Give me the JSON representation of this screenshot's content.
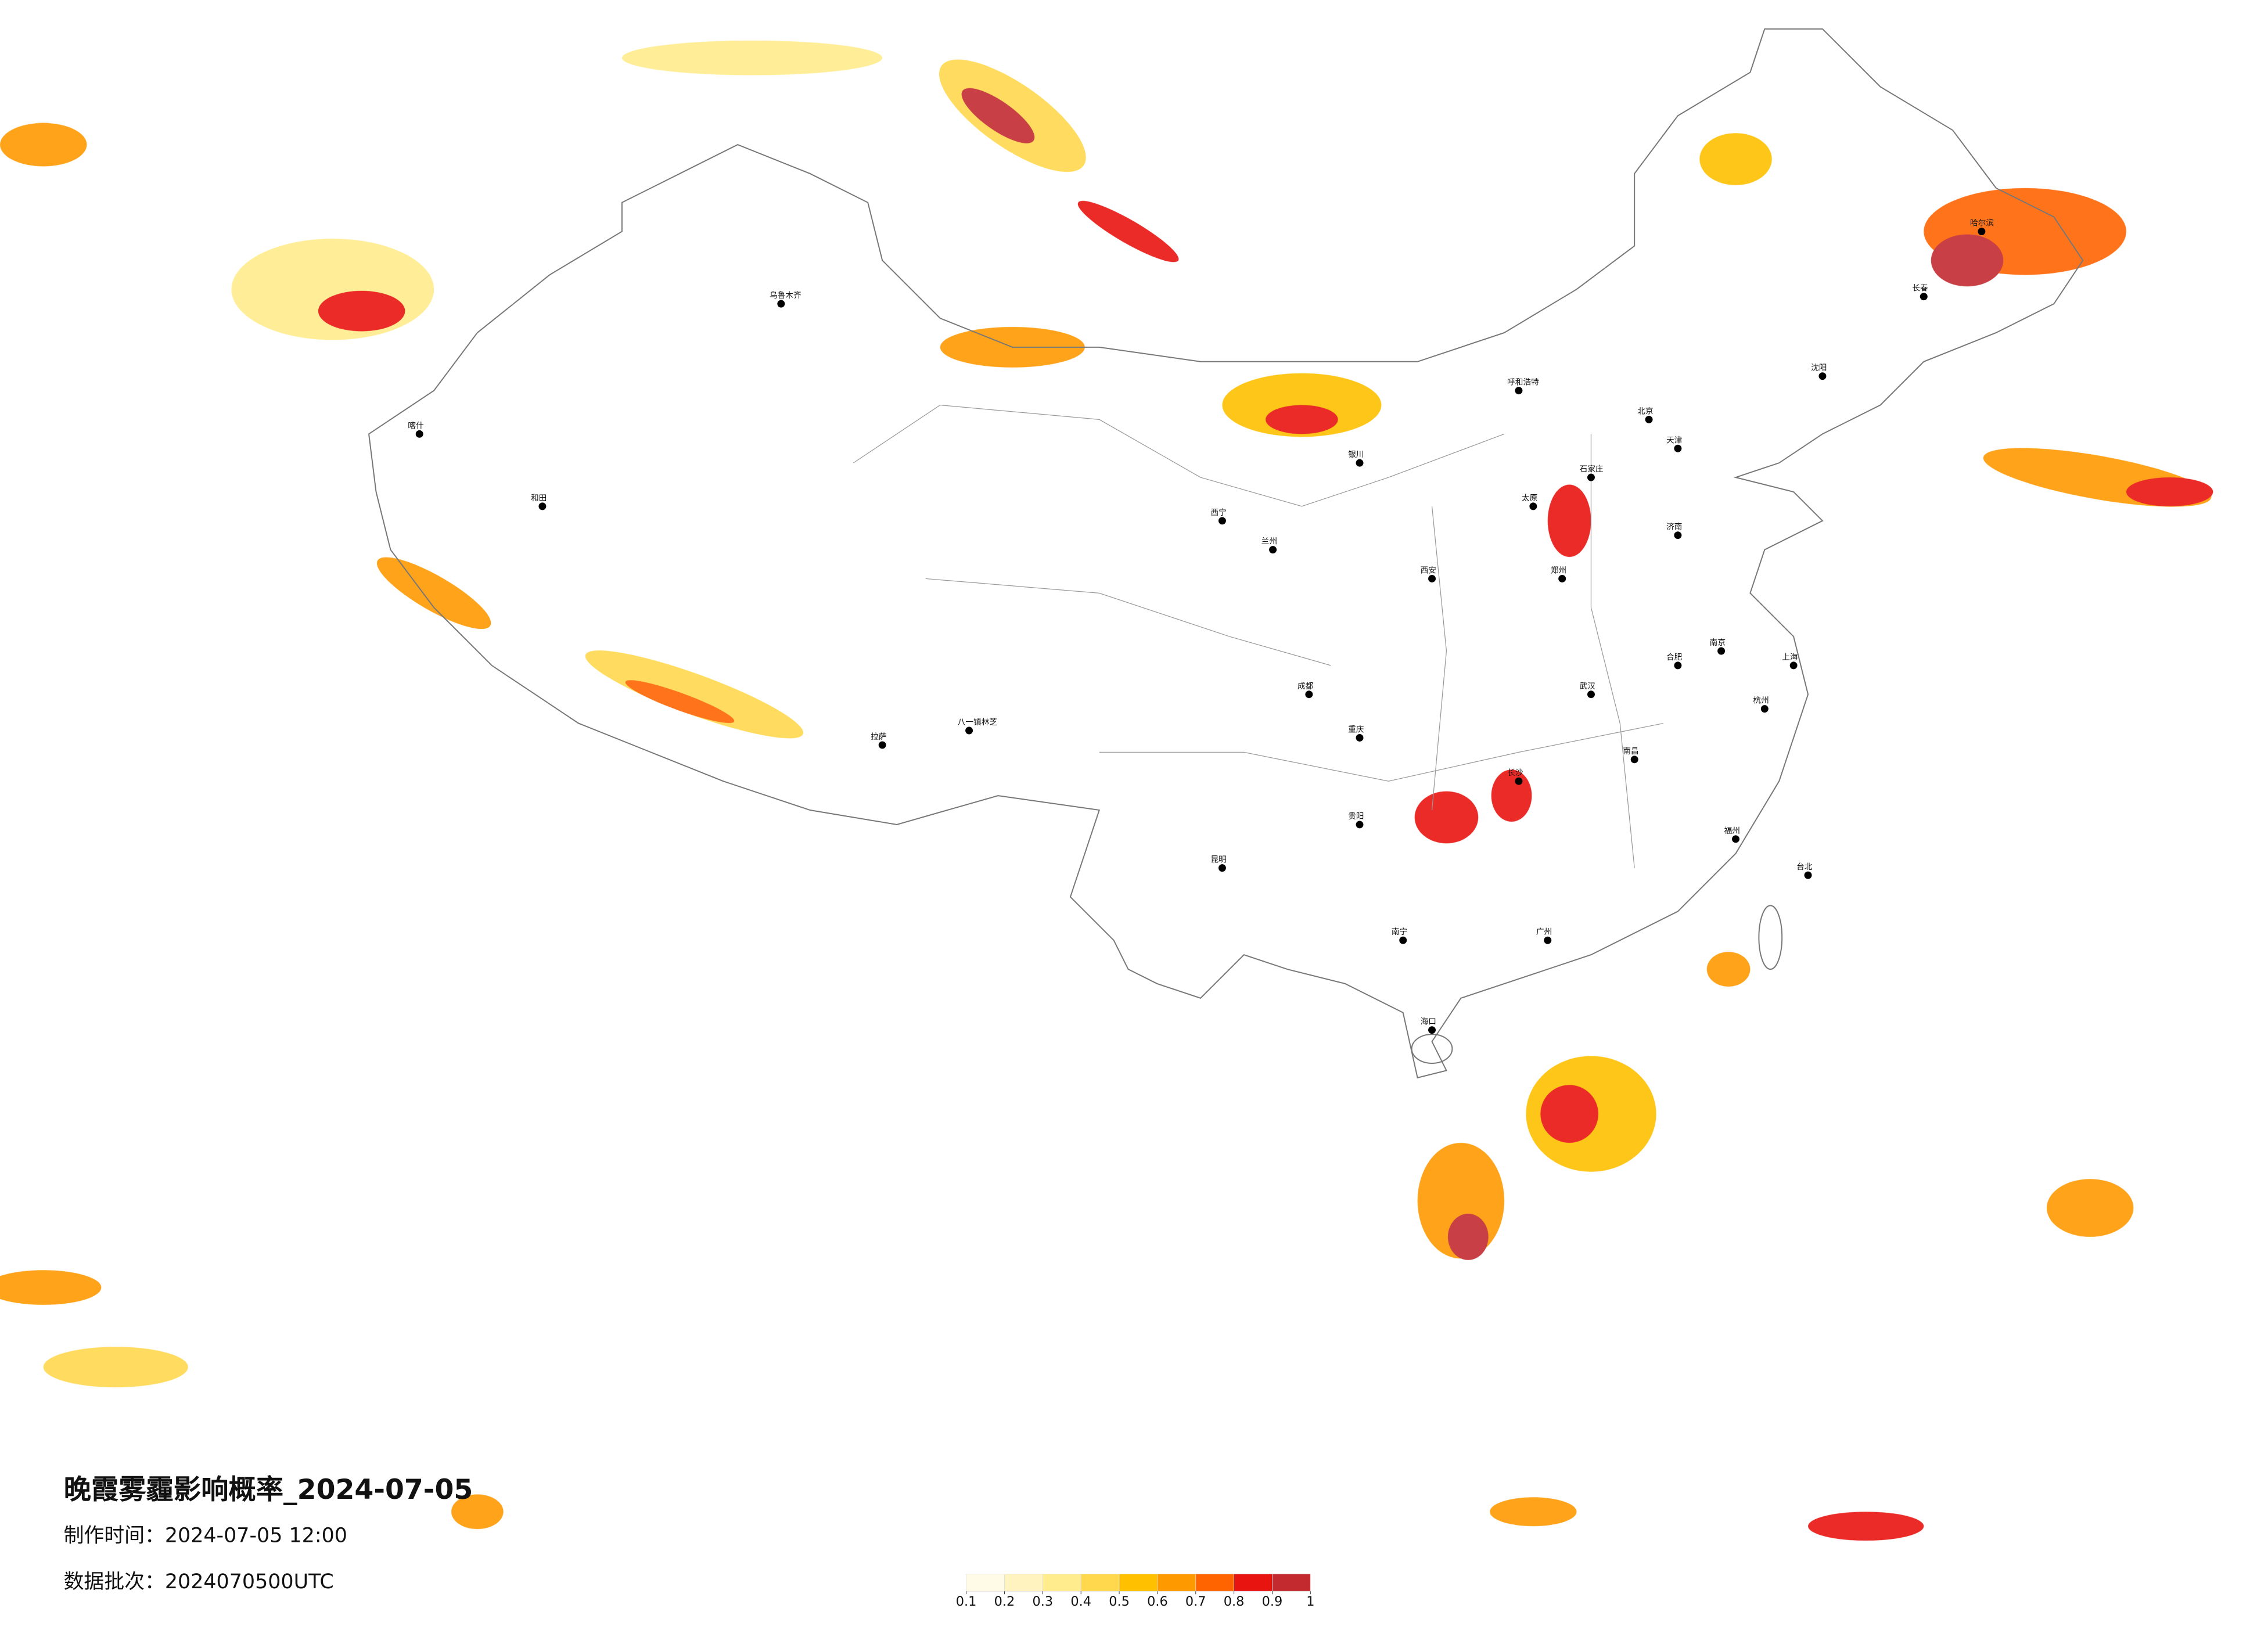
{
  "header": {
    "title": "晚霞雾霾影响概率_2024-07-05",
    "made_time": "制作时间：2024-07-05 12:00",
    "batch": "数据批次：2024070500UTC"
  },
  "legend": {
    "colors": [
      "#fffbe6",
      "#fff4bf",
      "#ffec8c",
      "#ffd84d",
      "#ffc000",
      "#ff9900",
      "#ff6400",
      "#e8140f",
      "#c22a30"
    ],
    "ticks": [
      0.1,
      0.2,
      0.3,
      0.4,
      0.5,
      0.6,
      0.7,
      0.8,
      0.9,
      1
    ]
  },
  "cities": [
    "北京",
    "天津",
    "石家庄",
    "太原",
    "郑州",
    "西安",
    "兰州",
    "西宁",
    "成都",
    "重庆",
    "贵阳",
    "昆明",
    "南宁",
    "广州",
    "长沙",
    "武汉",
    "南昌",
    "合肥",
    "南京",
    "上海",
    "杭州",
    "福州",
    "海口",
    "台北",
    "济南",
    "沈阳",
    "长春",
    "哈尔滨",
    "呼和浩特",
    "银川",
    "乌鲁木齐",
    "拉萨",
    "喀什",
    "和田",
    "八一镇林芝"
  ]
}
